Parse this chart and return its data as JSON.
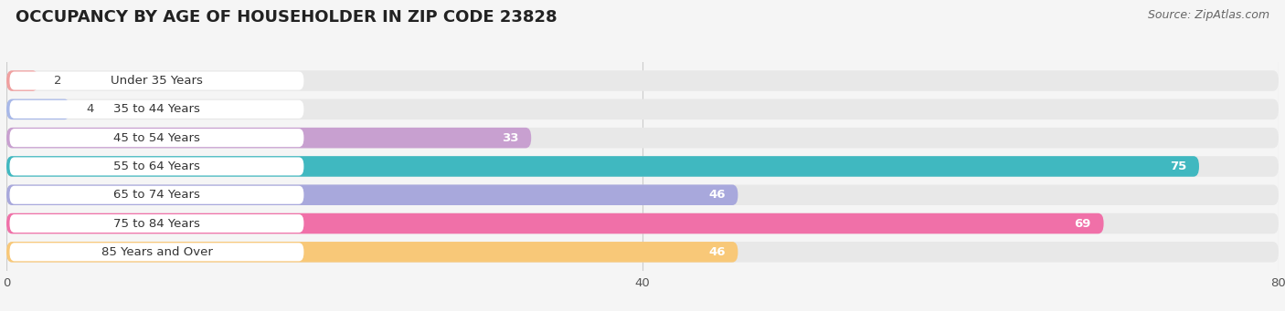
{
  "title": "OCCUPANCY BY AGE OF HOUSEHOLDER IN ZIP CODE 23828",
  "source": "Source: ZipAtlas.com",
  "categories": [
    "Under 35 Years",
    "35 to 44 Years",
    "45 to 54 Years",
    "55 to 64 Years",
    "65 to 74 Years",
    "75 to 84 Years",
    "85 Years and Over"
  ],
  "values": [
    2,
    4,
    33,
    75,
    46,
    69,
    46
  ],
  "bar_colors": [
    "#F0A0A0",
    "#A8B8E8",
    "#C8A0D0",
    "#40B8C0",
    "#A8A8DC",
    "#F070A8",
    "#F8C878"
  ],
  "xlim": [
    0,
    80
  ],
  "xticks": [
    0,
    40,
    80
  ],
  "background_color": "#f5f5f5",
  "bar_bg_color": "#e8e8e8",
  "pill_color": "#ffffff",
  "title_fontsize": 13,
  "label_fontsize": 9.5,
  "value_fontsize": 9.5,
  "source_fontsize": 9,
  "grid_color": "#cccccc"
}
